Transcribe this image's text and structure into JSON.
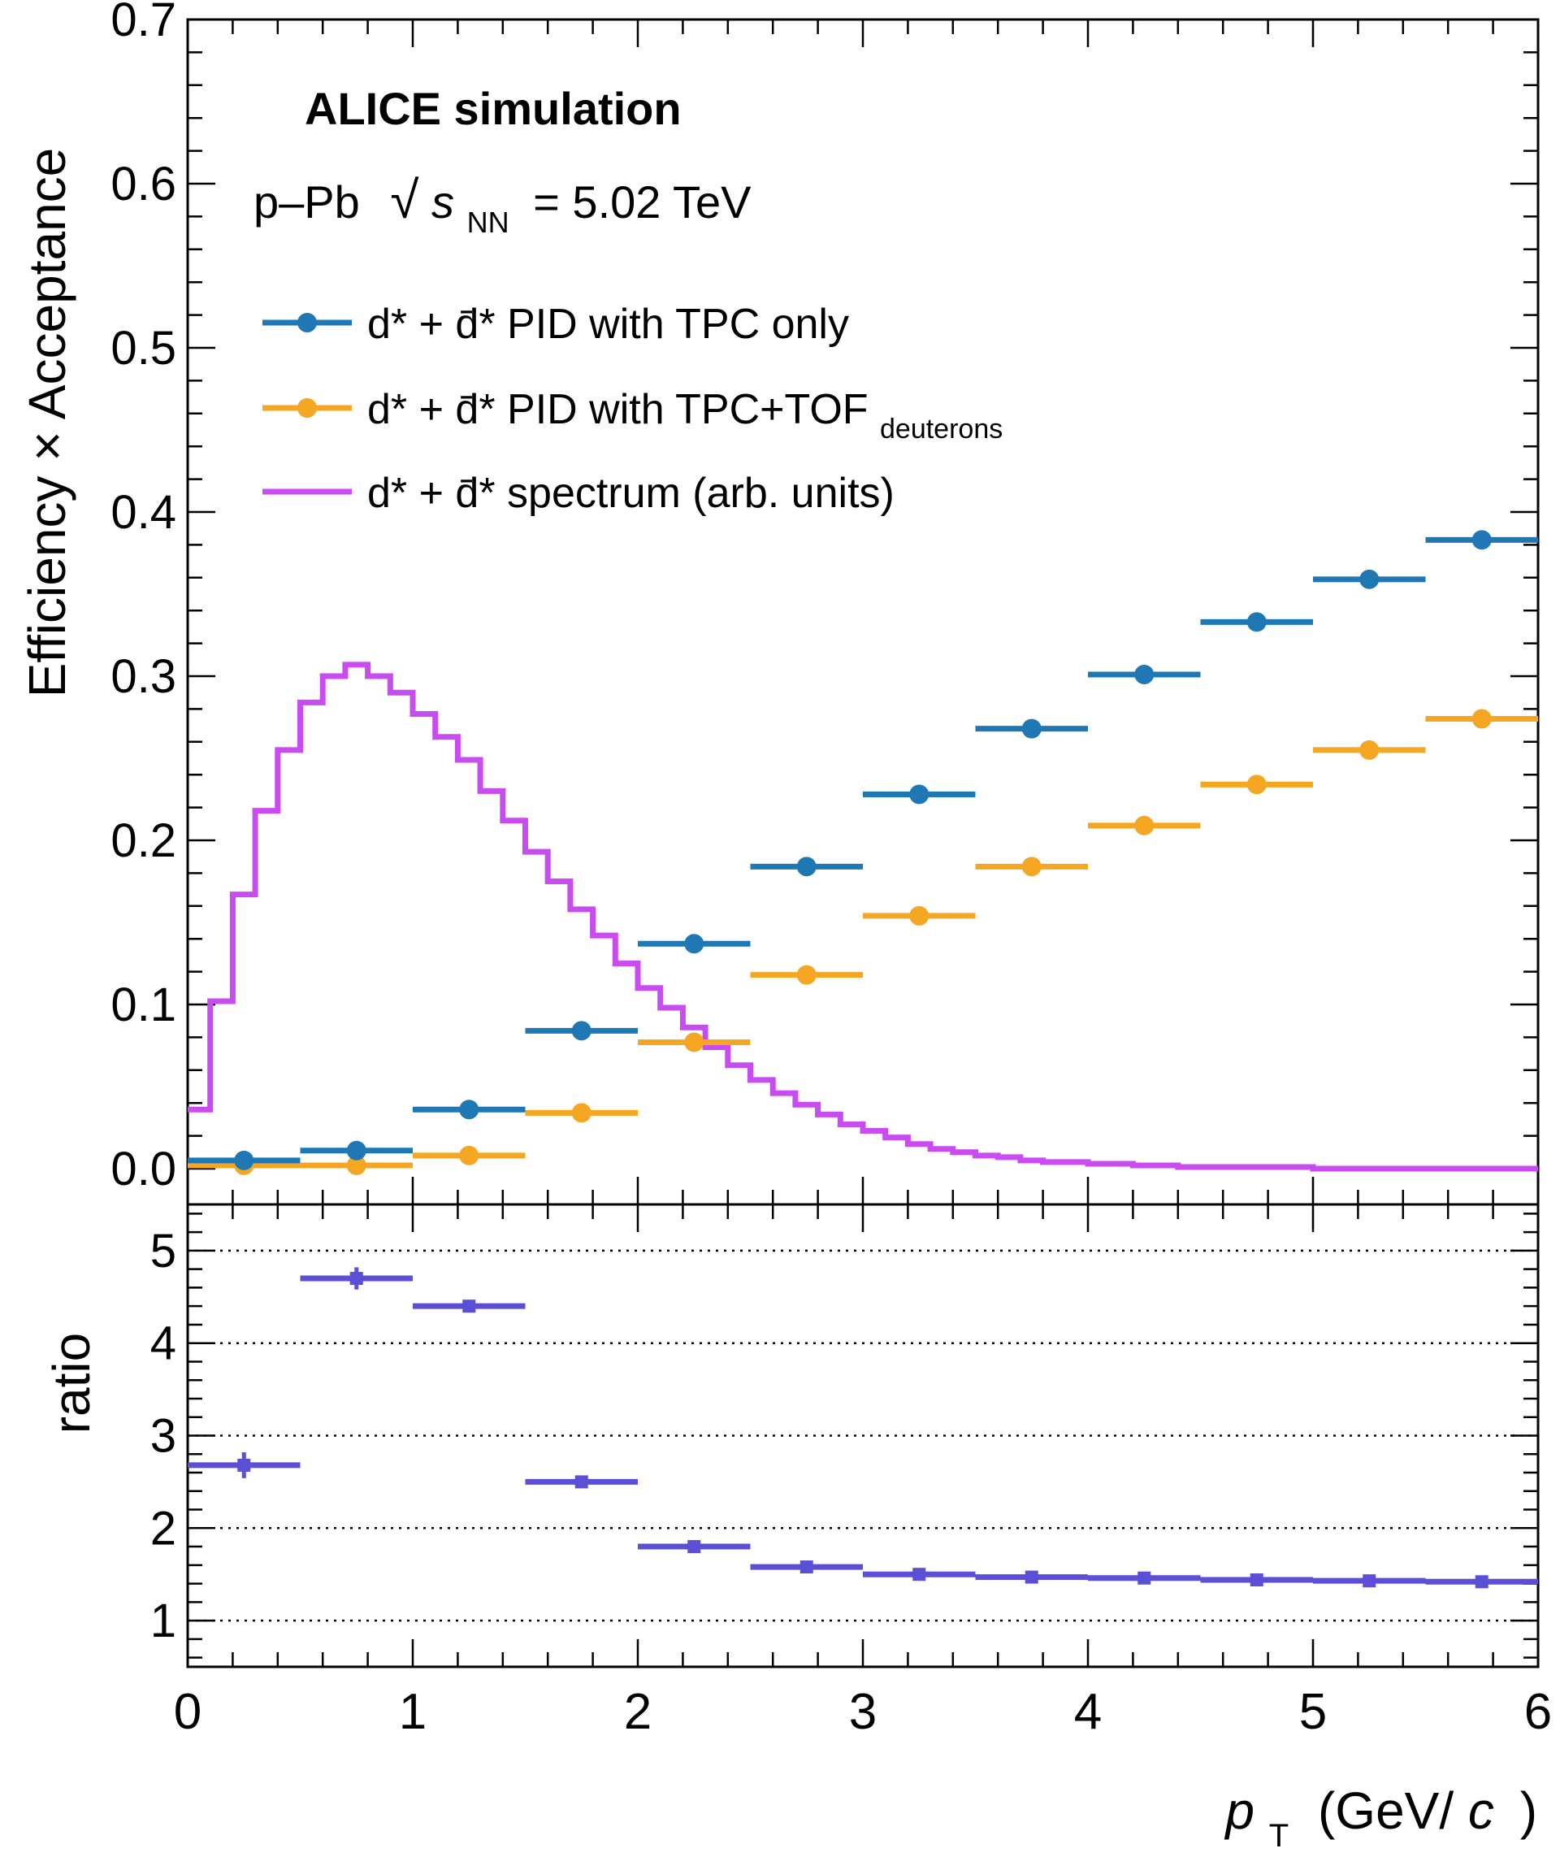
{
  "chart_data": [
    {
      "type": "scatter",
      "panel": "top",
      "ylabel": "Efficiency × Acceptance",
      "ylim": [
        0,
        0.7
      ],
      "xlim": [
        0,
        6
      ],
      "yticks": [
        "0.0",
        "0.1",
        "0.2",
        "0.3",
        "0.4",
        "0.5",
        "0.6",
        "0.7"
      ],
      "annotations": {
        "experiment": "ALICE simulation",
        "system_prefix": "p–Pb",
        "sqrt_symbol": "√",
        "s_letter": "s",
        "s_subscript": "NN",
        "energy": "= 5.02 TeV"
      },
      "legend_placement": "top-left",
      "series": [
        {
          "name_main": "d* + d̄*  PID with TPC only",
          "name_sub": "",
          "color": "#1f78b4",
          "style": "points-with-xerr",
          "x": [
            0.25,
            0.75,
            1.25,
            1.75,
            2.25,
            2.75,
            3.25,
            3.75,
            4.25,
            4.75,
            5.25,
            5.75
          ],
          "y": [
            0.005,
            0.011,
            0.036,
            0.084,
            0.137,
            0.184,
            0.228,
            0.268,
            0.301,
            0.333,
            0.359,
            0.383
          ]
        },
        {
          "name_main": "d* + d̄*  PID with TPC+TOF",
          "name_sub": "deuterons",
          "color": "#f5a623",
          "style": "points-with-xerr",
          "x": [
            0.25,
            0.75,
            1.25,
            1.75,
            2.25,
            2.75,
            3.25,
            3.75,
            4.25,
            4.75,
            5.25,
            5.75
          ],
          "y": [
            0.002,
            0.002,
            0.008,
            0.034,
            0.077,
            0.118,
            0.154,
            0.184,
            0.209,
            0.234,
            0.255,
            0.274
          ]
        },
        {
          "name_main": "d* + d̄* spectrum (arb. units)",
          "name_sub": "",
          "color": "#c84cf0",
          "style": "step-histogram",
          "bin_width": 0.1,
          "bin_low_edges": [
            0.0,
            0.1,
            0.2,
            0.3,
            0.4,
            0.5,
            0.6,
            0.7,
            0.8,
            0.9,
            1.0,
            1.1,
            1.2,
            1.3,
            1.4,
            1.5,
            1.6,
            1.7,
            1.8,
            1.9,
            2.0,
            2.1,
            2.2,
            2.3,
            2.4,
            2.5,
            2.6,
            2.7,
            2.8,
            2.9,
            3.0,
            3.1,
            3.2,
            3.3,
            3.4,
            3.5,
            3.6,
            3.7,
            3.8,
            3.9,
            4.0,
            4.1,
            4.2,
            4.3,
            4.4,
            4.5,
            4.6,
            4.7,
            4.8,
            4.9,
            5.0,
            5.1,
            5.2,
            5.3,
            5.4,
            5.5,
            5.6,
            5.7,
            5.8,
            5.9
          ],
          "y": [
            0.036,
            0.102,
            0.167,
            0.218,
            0.255,
            0.284,
            0.3,
            0.307,
            0.3,
            0.29,
            0.277,
            0.263,
            0.249,
            0.23,
            0.212,
            0.193,
            0.175,
            0.158,
            0.142,
            0.125,
            0.11,
            0.098,
            0.086,
            0.074,
            0.063,
            0.054,
            0.046,
            0.039,
            0.033,
            0.027,
            0.023,
            0.019,
            0.015,
            0.012,
            0.01,
            0.008,
            0.007,
            0.005,
            0.004,
            0.004,
            0.003,
            0.003,
            0.002,
            0.002,
            0.001,
            0.001,
            0.001,
            0.001,
            0.001,
            0.001,
            0.0,
            0.0,
            0.0,
            0.0,
            0.0,
            0.0,
            0.0,
            0.0,
            0.0,
            0.0
          ]
        }
      ]
    },
    {
      "type": "scatter",
      "panel": "bottom",
      "ylabel": "ratio",
      "xlabel_italic_p": "p",
      "xlabel_sub": "T",
      "xlabel_rest_1": "(GeV/",
      "xlabel_italic_c": "c",
      "xlabel_rest_2": ")",
      "ylim": [
        0.5,
        5.5
      ],
      "xlim": [
        0,
        6
      ],
      "yticks": [
        "1",
        "2",
        "3",
        "4",
        "5"
      ],
      "xticks": [
        "0",
        "1",
        "2",
        "3",
        "4",
        "5",
        "6"
      ],
      "grid": "horizontal dotted at 1,2,3,4,5",
      "series": [
        {
          "name": "",
          "color": "#5b4fd6",
          "style": "points-with-xerr-yerr",
          "x": [
            0.25,
            0.75,
            1.25,
            1.75,
            2.25,
            2.75,
            3.25,
            3.75,
            4.25,
            4.75,
            5.25,
            5.75
          ],
          "y": [
            2.68,
            4.7,
            4.4,
            2.5,
            1.8,
            1.58,
            1.5,
            1.47,
            1.46,
            1.44,
            1.43,
            1.42
          ],
          "yerr": [
            0.14,
            0.12,
            0.04,
            0.03,
            0.02,
            0.02,
            0.02,
            0.02,
            0.02,
            0.02,
            0.02,
            0.02
          ]
        }
      ]
    }
  ]
}
